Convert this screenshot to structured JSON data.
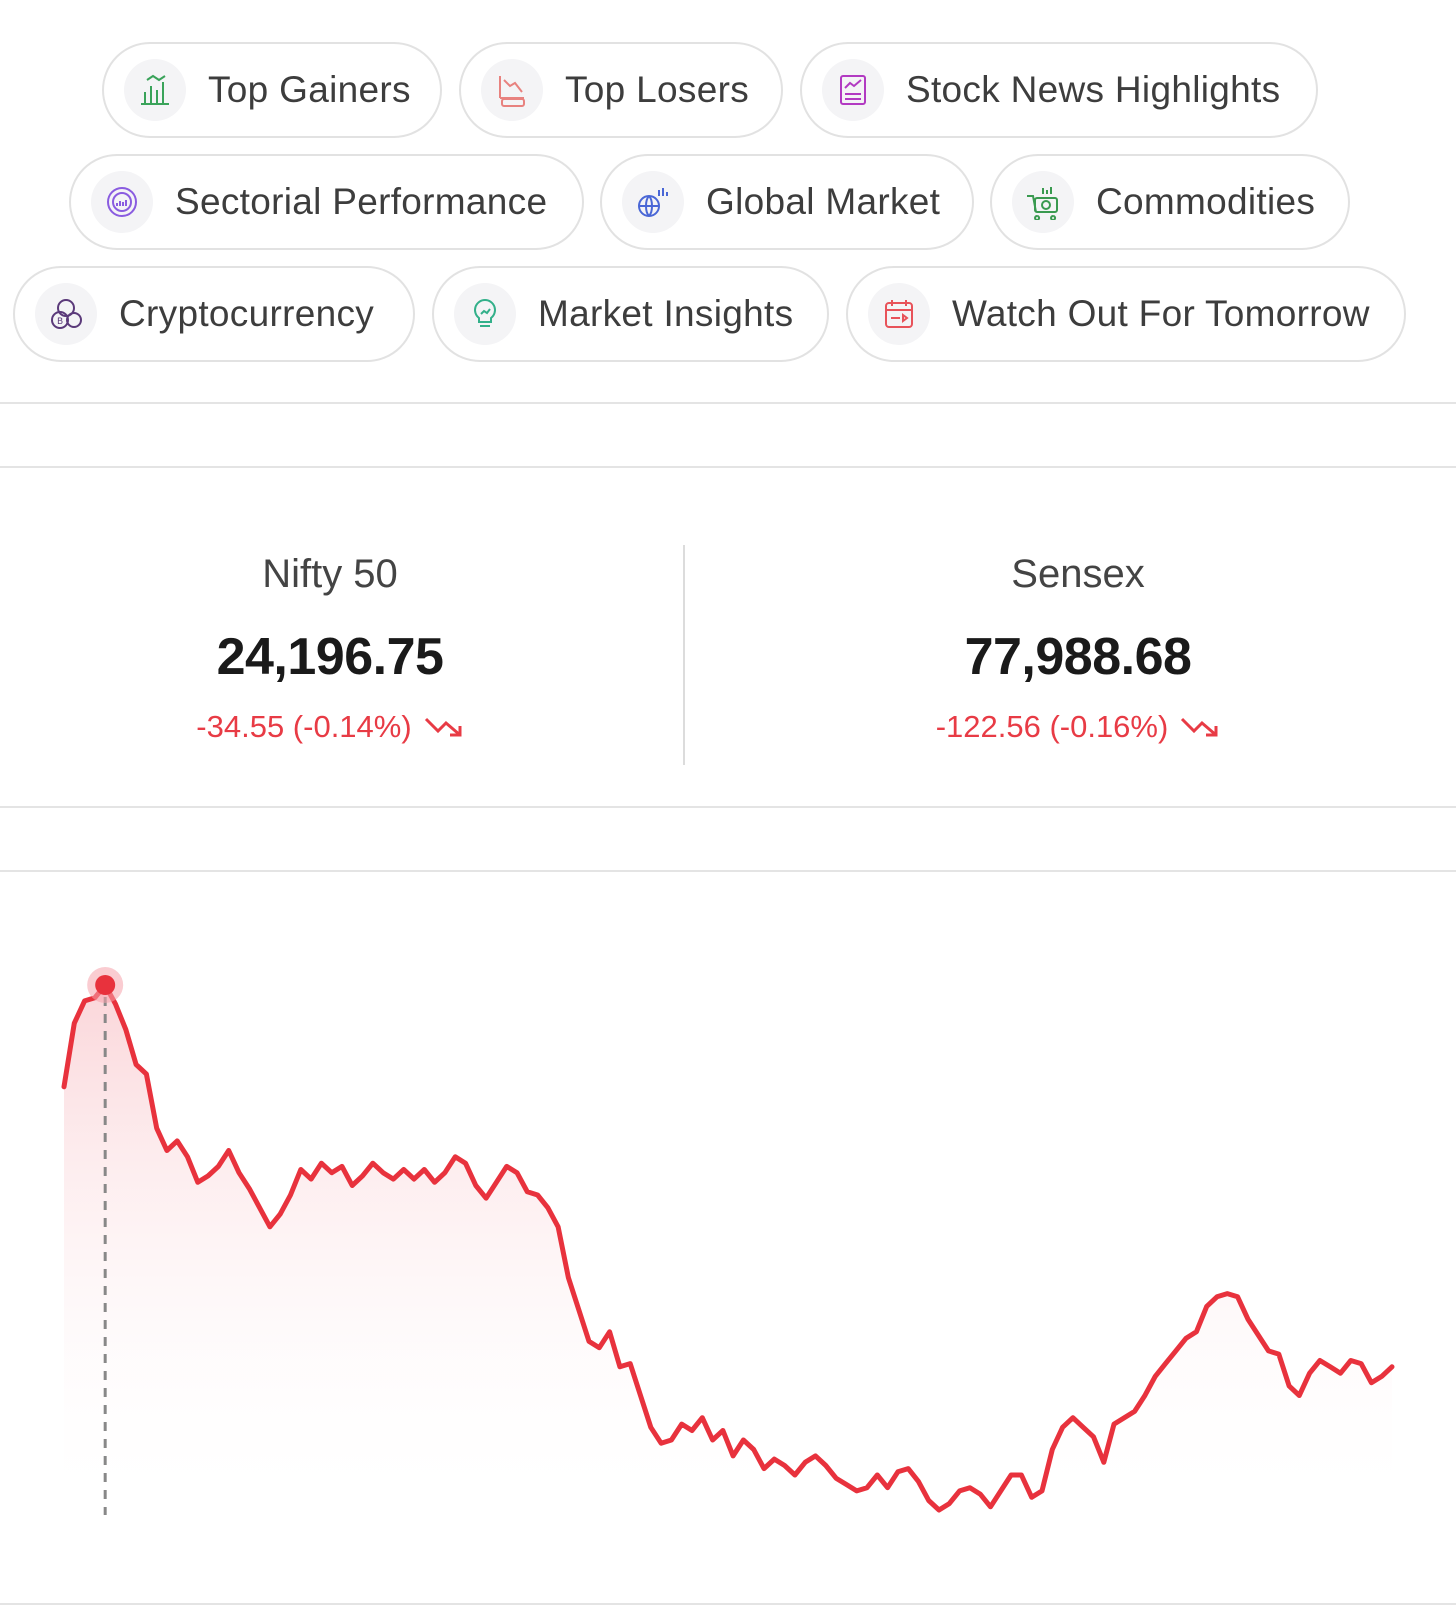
{
  "chips": [
    {
      "label": "Top Gainers",
      "icon": "bar-chart-up-icon",
      "color": "#3aa35a"
    },
    {
      "label": "Top Losers",
      "icon": "loss-chart-icon",
      "color": "#e8827f"
    },
    {
      "label": "Stock News Highlights",
      "icon": "newspaper-chart-icon",
      "color": "#b23ac2"
    },
    {
      "label": "Sectorial Performance",
      "icon": "sector-gauge-icon",
      "color": "#8a5ce0"
    },
    {
      "label": "Global Market",
      "icon": "globe-chart-icon",
      "color": "#4a67d6"
    },
    {
      "label": "Commodities",
      "icon": "commodities-cart-icon",
      "color": "#3a9a50"
    },
    {
      "label": "Cryptocurrency",
      "icon": "crypto-coins-icon",
      "color": "#5b3a7a"
    },
    {
      "label": "Market Insights",
      "icon": "lightbulb-chart-icon",
      "color": "#33b08a"
    },
    {
      "label": "Watch Out For Tomorrow",
      "icon": "calendar-icon",
      "color": "#e8535a"
    }
  ],
  "indices": [
    {
      "name": "Nifty 50",
      "value": "24,196.75",
      "change": "-34.55 (-0.14%)",
      "trend": "down"
    },
    {
      "name": "Sensex",
      "value": "77,988.68",
      "change": "-122.56 (-0.16%)",
      "trend": "down"
    }
  ],
  "colors": {
    "negative": "#e83b45",
    "chart_line": "#e8323d"
  },
  "chart_data": {
    "type": "line",
    "title": "",
    "xlabel": "",
    "ylabel": "",
    "grid": false,
    "highlight_index": 4,
    "series": [
      {
        "values": [
          24230,
          24250,
          24257,
          24258,
          24262,
          24256,
          24248,
          24237,
          24234,
          24217,
          24210,
          24213,
          24208,
          24200,
          24202,
          24205,
          24210,
          24203,
          24198,
          24192,
          24186,
          24190,
          24196,
          24204,
          24201,
          24206,
          24203,
          24205,
          24199,
          24202,
          24206,
          24203,
          24201,
          24204,
          24201,
          24204,
          24200,
          24203,
          24208,
          24206,
          24199,
          24195,
          24200,
          24205,
          24203,
          24197,
          24196,
          24192,
          24186,
          24170,
          24160,
          24150,
          24148,
          24153,
          24142,
          24143,
          24133,
          24123,
          24118,
          24119,
          24124,
          24122,
          24126,
          24119,
          24122,
          24114,
          24119,
          24116,
          24110,
          24113,
          24111,
          24108,
          24112,
          24114,
          24111,
          24107,
          24105,
          24103,
          24104,
          24108,
          24104,
          24109,
          24110,
          24106,
          24100,
          24097,
          24099,
          24103,
          24104,
          24102,
          24098,
          24103,
          24108,
          24108,
          24101,
          24103,
          24116,
          24123,
          24126,
          24123,
          24120,
          24112,
          24124,
          24126,
          24128,
          24133,
          24139,
          24143,
          24147,
          24151,
          24153,
          24161,
          24164,
          24165,
          24164,
          24157,
          24152,
          24147,
          24146,
          24136,
          24133,
          24140,
          24144,
          24142,
          24140,
          24144,
          24143,
          24137,
          24139,
          24142
        ]
      }
    ]
  }
}
